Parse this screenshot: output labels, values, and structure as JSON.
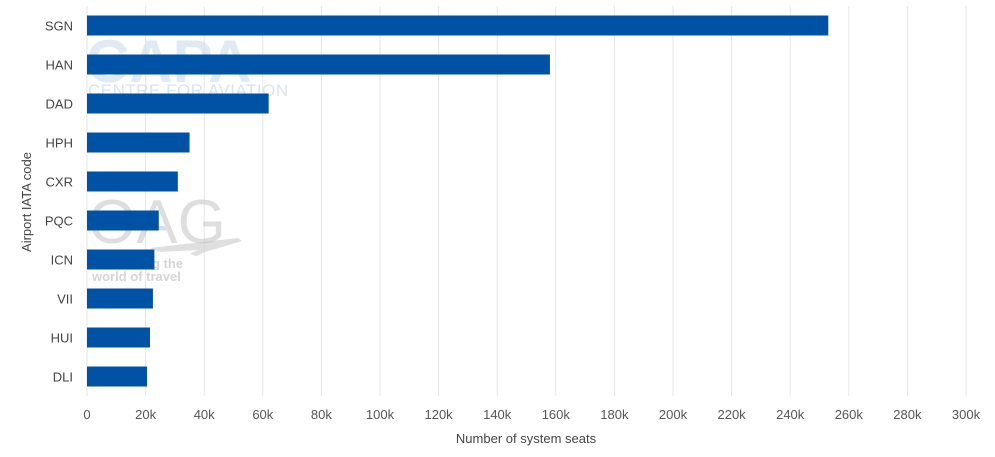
{
  "chart_data": {
    "type": "bar",
    "orientation": "horizontal",
    "categories": [
      "SGN",
      "HAN",
      "DAD",
      "HPH",
      "CXR",
      "PQC",
      "ICN",
      "VII",
      "HUI",
      "DLI"
    ],
    "values": [
      253000,
      158000,
      62000,
      35000,
      31000,
      24500,
      23000,
      22500,
      21500,
      20500
    ],
    "xlabel": "Number of system seats",
    "ylabel": "Airport IATA code",
    "xlim": [
      0,
      300000
    ],
    "xticks": [
      0,
      20000,
      40000,
      60000,
      80000,
      100000,
      120000,
      140000,
      160000,
      180000,
      200000,
      220000,
      240000,
      260000,
      280000,
      300000
    ],
    "xtick_labels": [
      "0",
      "20k",
      "40k",
      "60k",
      "80k",
      "100k",
      "120k",
      "140k",
      "160k",
      "180k",
      "200k",
      "220k",
      "240k",
      "260k",
      "280k",
      "300k"
    ],
    "grid": "vertical",
    "bar_color": "#0052a5",
    "grid_color": "#e6e6e6"
  },
  "watermarks": {
    "capa_logo": "CAPA",
    "capa_sub": "CENTRE FOR AVIATION",
    "oag_logo": "OAG",
    "oag_line1": "g the",
    "oag_line2": "world of travel"
  }
}
